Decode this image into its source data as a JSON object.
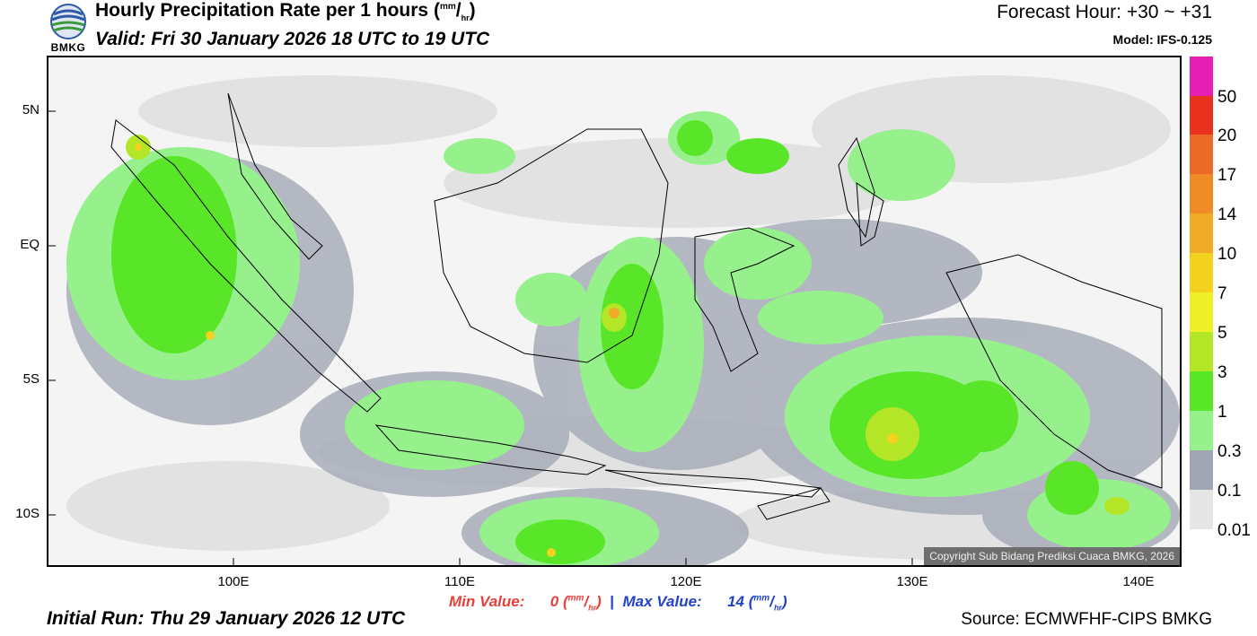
{
  "header": {
    "logo_text": "BMKG",
    "title_main": "Hourly Precipitation Rate per 1 hours",
    "title_unit_num": "mm",
    "title_unit_den": "hr",
    "valid": "Valid: Fri 30 January 2026 18 UTC to 19 UTC",
    "forecast": "Forecast Hour: +30 ~ +31",
    "model": "Model: IFS-0.125"
  },
  "axes": {
    "lat_labels": [
      "5N",
      "EQ",
      "5S",
      "10S"
    ],
    "lon_labels": [
      "100E",
      "110E",
      "120E",
      "130E",
      "140E"
    ]
  },
  "map": {
    "copyright": "Copyright Sub Bidang Prediksi Cuaca BMKG, 2026"
  },
  "colorbar": {
    "labels": [
      "50",
      "20",
      "17",
      "14",
      "10",
      "7",
      "5",
      "3",
      "1",
      "0.3",
      "0.1",
      "0.01"
    ],
    "colors": [
      "#e61fb4",
      "#e8321e",
      "#ec6a28",
      "#f08c28",
      "#f0aa28",
      "#f2d21e",
      "#f0f028",
      "#b4e628",
      "#5ae628",
      "#96f08c",
      "#a0a5b4",
      "#e6e6e6"
    ]
  },
  "footer": {
    "min_label": "Min Value:",
    "min_value": "0",
    "max_label": "Max Value:",
    "max_value": "14",
    "unit_num": "mm",
    "unit_den": "hr",
    "initial": "Initial Run: Thu 29 January 2026 12 UTC",
    "source": "Source: ECMWFHF-CIPS BMKG"
  }
}
